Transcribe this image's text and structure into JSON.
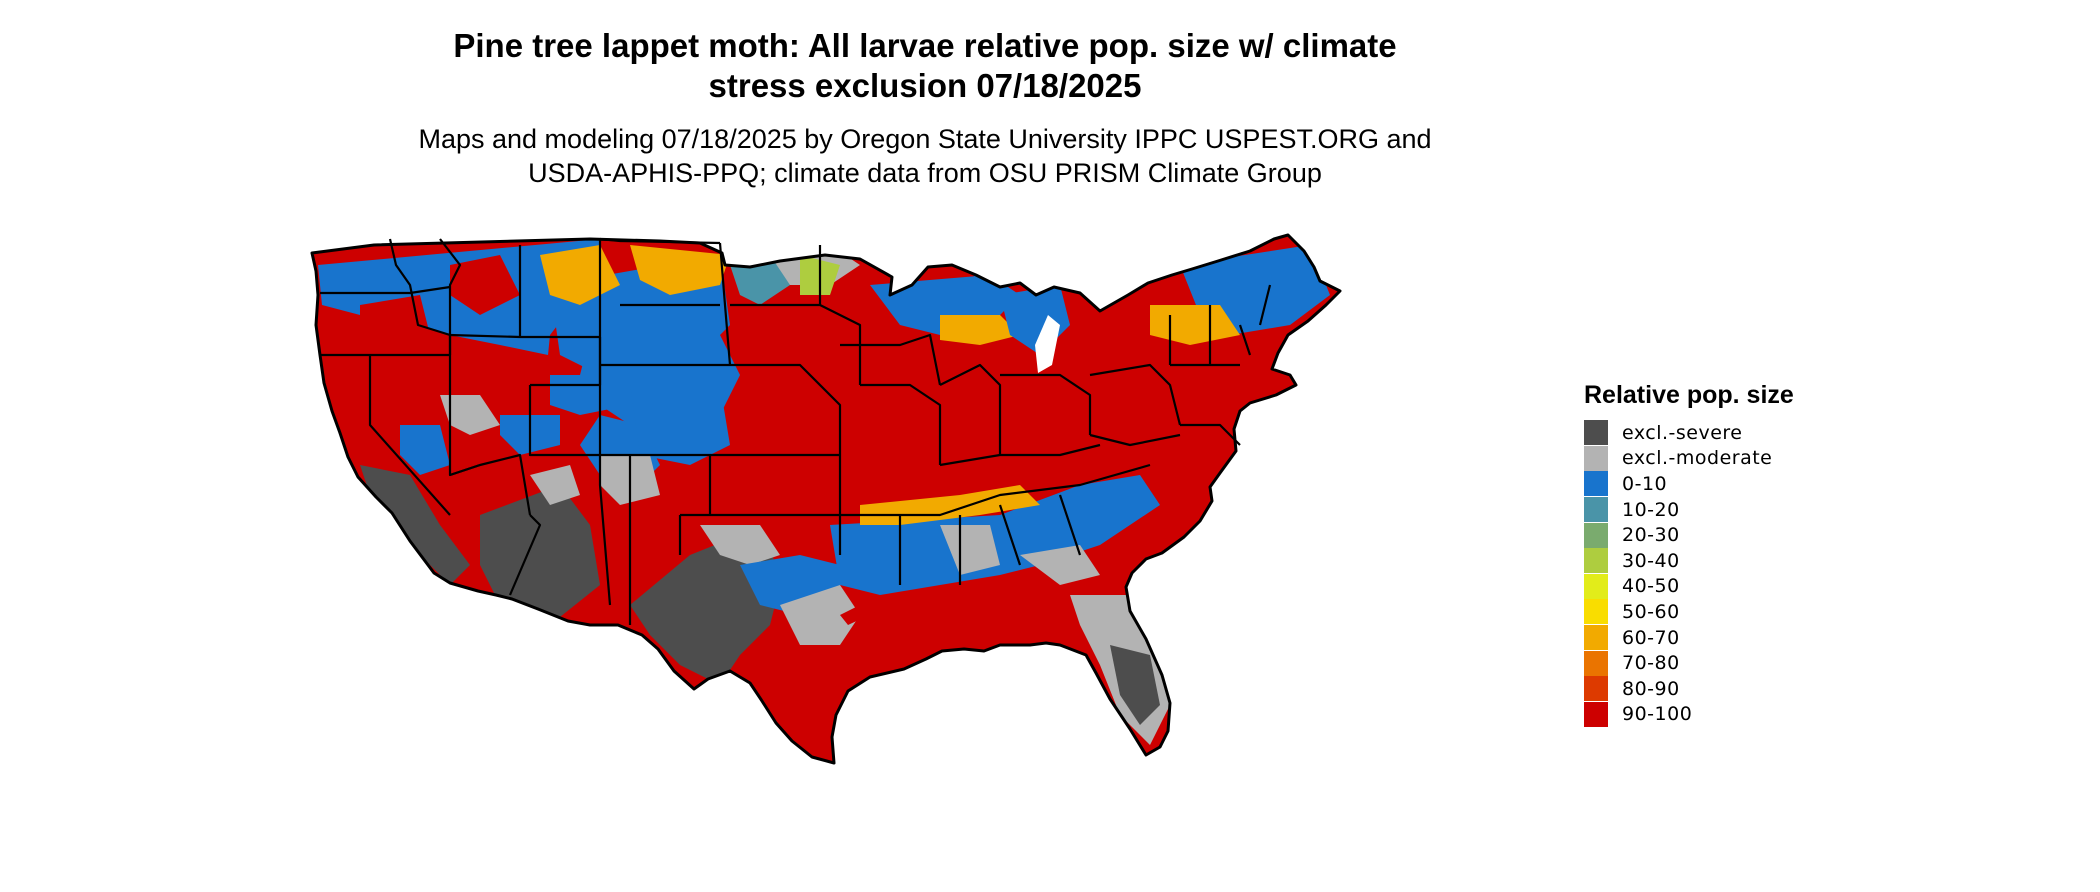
{
  "title_line1": "Pine tree lappet moth: All larvae relative pop. size w/ climate",
  "title_line2": "stress exclusion 07/18/2025",
  "subtitle_line1": "Maps and modeling 07/18/2025 by Oregon State University IPPC USPEST.ORG and",
  "subtitle_line2": "USDA-APHIS-PPQ; climate data from OSU PRISM Climate Group",
  "legend": {
    "title": "Relative pop. size",
    "items": [
      {
        "label": "excl.-severe",
        "color": "#4d4d4d"
      },
      {
        "label": "excl.-moderate",
        "color": "#b3b3b3"
      },
      {
        "label": "0-10",
        "color": "#1874cd"
      },
      {
        "label": "10-20",
        "color": "#4a94a8"
      },
      {
        "label": "20-30",
        "color": "#7aab6e"
      },
      {
        "label": "30-40",
        "color": "#aecd3f"
      },
      {
        "label": "40-50",
        "color": "#e2ec1a"
      },
      {
        "label": "50-60",
        "color": "#f9dd00"
      },
      {
        "label": "60-70",
        "color": "#f2aa00"
      },
      {
        "label": "70-80",
        "color": "#ea7400"
      },
      {
        "label": "80-90",
        "color": "#dd3a00"
      },
      {
        "label": "90-100",
        "color": "#cd0000"
      }
    ]
  },
  "map": {
    "region": "Contiguous United States",
    "colors": {
      "severe": "#4d4d4d",
      "moderate": "#b3b3b3",
      "low": "#1874cd",
      "mid": "#f2aa00",
      "high": "#cd0000",
      "border": "#000000"
    }
  }
}
